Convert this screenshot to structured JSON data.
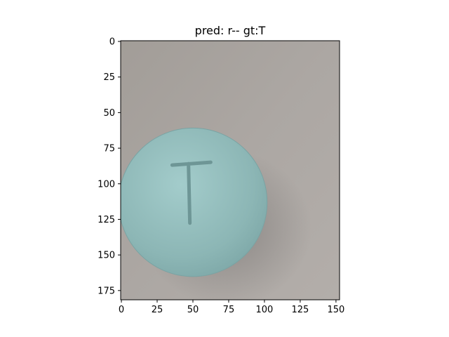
{
  "chart_data": {
    "type": "image",
    "title": "pred: r-- gt:T",
    "image_extent": {
      "width": 153,
      "height": 182
    },
    "xlim": [
      -0.5,
      152.5
    ],
    "ylim": [
      181.5,
      -0.5
    ],
    "xticks": [
      0,
      25,
      50,
      75,
      100,
      125,
      150
    ],
    "yticks": [
      0,
      25,
      50,
      75,
      100,
      125,
      150,
      175
    ],
    "xtick_labels": [
      "0",
      "25",
      "50",
      "75",
      "100",
      "125",
      "150"
    ],
    "ytick_labels": [
      "0",
      "25",
      "50",
      "75",
      "100",
      "125",
      "150",
      "175"
    ],
    "grid": false,
    "image_content": {
      "subject": "round light blue pill",
      "imprint": "T",
      "pill_center": [
        50,
        113
      ],
      "pill_radius": 52,
      "pill_color": "#8fb9b8",
      "background_color": "#a9a49f"
    }
  }
}
